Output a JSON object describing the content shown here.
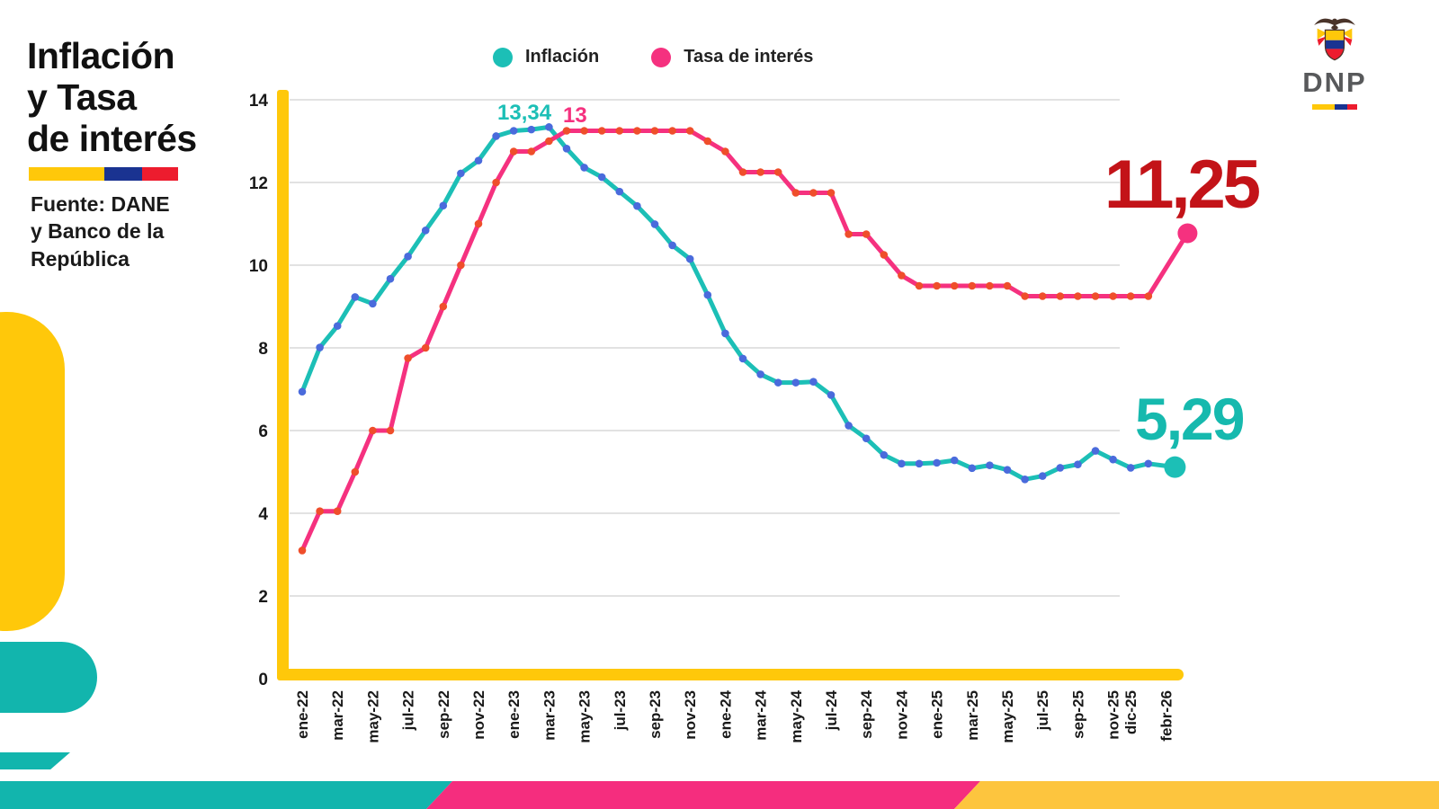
{
  "header": {
    "title_line1": "Inflación",
    "title_line2": "y Tasa",
    "title_line3": "de interés",
    "source_line1": "Fuente: DANE",
    "source_line2": "y Banco de la",
    "source_line3": "República"
  },
  "legend": {
    "inflacion_label": "Inflación",
    "tasa_label": "Tasa de interés"
  },
  "logo": {
    "text": "DNP"
  },
  "colors": {
    "inflacion_line": "#1CBFB6",
    "tasa_line": "#F5317F",
    "inflacion_dots": "#4A6BDC",
    "tasa_dots": "#EF4E2B",
    "axis_yellow": "#FFC80A",
    "gridline": "#d9d9d9",
    "annotation_red": "#C31318",
    "annotation_teal": "#16B9AE",
    "footer_teal": "#12B5AD",
    "footer_pink": "#F52D7E",
    "footer_yellow": "#FDC53E",
    "flag_yellow": "#FFC80A",
    "flag_blue": "#1A3391",
    "flag_red": "#ED1C2E"
  },
  "chart_data": {
    "type": "line",
    "title": "Inflación y Tasa de interés",
    "xlabel": "",
    "ylabel": "",
    "ylim": [
      0,
      14
    ],
    "yticks": [
      0,
      2,
      4,
      6,
      8,
      10,
      12,
      14
    ],
    "grid": "horizontal",
    "legend_position": "top",
    "x": [
      "ene-22",
      "feb-22",
      "mar-22",
      "abr-22",
      "may-22",
      "jun-22",
      "jul-22",
      "ago-22",
      "sep-22",
      "oct-22",
      "nov-22",
      "dic-22",
      "ene-23",
      "feb-23",
      "mar-23",
      "abr-23",
      "may-23",
      "jun-23",
      "jul-23",
      "ago-23",
      "sep-23",
      "oct-23",
      "nov-23",
      "dic-23",
      "ene-24",
      "feb-24",
      "mar-24",
      "abr-24",
      "may-24",
      "jun-24",
      "jul-24",
      "ago-24",
      "sep-24",
      "oct-24",
      "nov-24",
      "dic-24",
      "ene-25",
      "feb-25",
      "mar-25",
      "abr-25",
      "may-25",
      "jun-25",
      "jul-25",
      "ago-25",
      "sep-25",
      "oct-25",
      "nov-25",
      "dic-25",
      "ene-26",
      "febr-26"
    ],
    "x_ticks": [
      {
        "m": 0,
        "label": "ene-22"
      },
      {
        "m": 2,
        "label": "mar-22"
      },
      {
        "m": 4,
        "label": "may-22"
      },
      {
        "m": 6,
        "label": "jul-22"
      },
      {
        "m": 8,
        "label": "sep-22"
      },
      {
        "m": 10,
        "label": "nov-22"
      },
      {
        "m": 12,
        "label": "ene-23"
      },
      {
        "m": 14,
        "label": "mar-23"
      },
      {
        "m": 16,
        "label": "may-23"
      },
      {
        "m": 18,
        "label": "jul-23"
      },
      {
        "m": 20,
        "label": "sep-23"
      },
      {
        "m": 22,
        "label": "nov-23"
      },
      {
        "m": 24,
        "label": "ene-24"
      },
      {
        "m": 26,
        "label": "mar-24"
      },
      {
        "m": 28,
        "label": "may-24"
      },
      {
        "m": 30,
        "label": "jul-24"
      },
      {
        "m": 32,
        "label": "sep-24"
      },
      {
        "m": 34,
        "label": "nov-24"
      },
      {
        "m": 36,
        "label": "ene-25"
      },
      {
        "m": 38,
        "label": "mar-25"
      },
      {
        "m": 40,
        "label": "may-25"
      },
      {
        "m": 42,
        "label": "jul-25"
      },
      {
        "m": 44,
        "label": "sep-25"
      },
      {
        "m": 46,
        "label": "nov-25"
      },
      {
        "m": 47,
        "label": "dic-25"
      },
      {
        "m": 49,
        "label": "febr-26"
      }
    ],
    "series": [
      {
        "name": "Inflación",
        "color": "#1CBFB6",
        "dot_color": "#4A6BDC",
        "values": [
          6.94,
          8.01,
          8.53,
          9.23,
          9.07,
          9.67,
          10.21,
          10.84,
          11.44,
          12.22,
          12.53,
          13.12,
          13.25,
          13.28,
          13.34,
          12.82,
          12.36,
          12.13,
          11.78,
          11.43,
          10.99,
          10.48,
          10.15,
          9.28,
          8.35,
          7.74,
          7.36,
          7.16,
          7.16,
          7.18,
          6.86,
          6.12,
          5.81,
          5.41,
          5.2,
          5.2,
          5.22,
          5.28,
          5.09,
          5.16,
          5.05,
          4.82,
          4.9,
          5.1,
          5.18,
          5.51,
          5.3,
          5.1,
          5.2,
          5.29
        ]
      },
      {
        "name": "Tasa de interés",
        "color": "#F5317F",
        "dot_color": "#EF4E2B",
        "values": [
          3.1,
          4.05,
          4.05,
          5.0,
          6.0,
          6.0,
          7.75,
          8.0,
          9.0,
          10.0,
          11.0,
          12.0,
          12.75,
          12.75,
          13.0,
          13.25,
          13.25,
          13.25,
          13.25,
          13.25,
          13.25,
          13.25,
          13.25,
          13.0,
          12.75,
          12.25,
          12.25,
          12.25,
          11.75,
          11.75,
          11.75,
          10.75,
          10.75,
          10.25,
          9.75,
          9.5,
          9.5,
          9.5,
          9.5,
          9.5,
          9.5,
          9.25,
          9.25,
          9.25,
          9.25,
          9.25,
          9.25,
          9.25,
          9.25,
          11.25
        ]
      }
    ],
    "annotations": [
      {
        "text": "13,34",
        "series": "Inflación",
        "month": "mar-23",
        "value": 13.34
      },
      {
        "text": "13",
        "series": "Tasa de interés",
        "month": "mar-23",
        "value": 13.0
      },
      {
        "text": "11,25",
        "series": "Tasa de interés",
        "month": "febr-26",
        "value": 11.25
      },
      {
        "text": "5,29",
        "series": "Inflación",
        "month": "febr-26",
        "value": 5.29
      }
    ]
  }
}
